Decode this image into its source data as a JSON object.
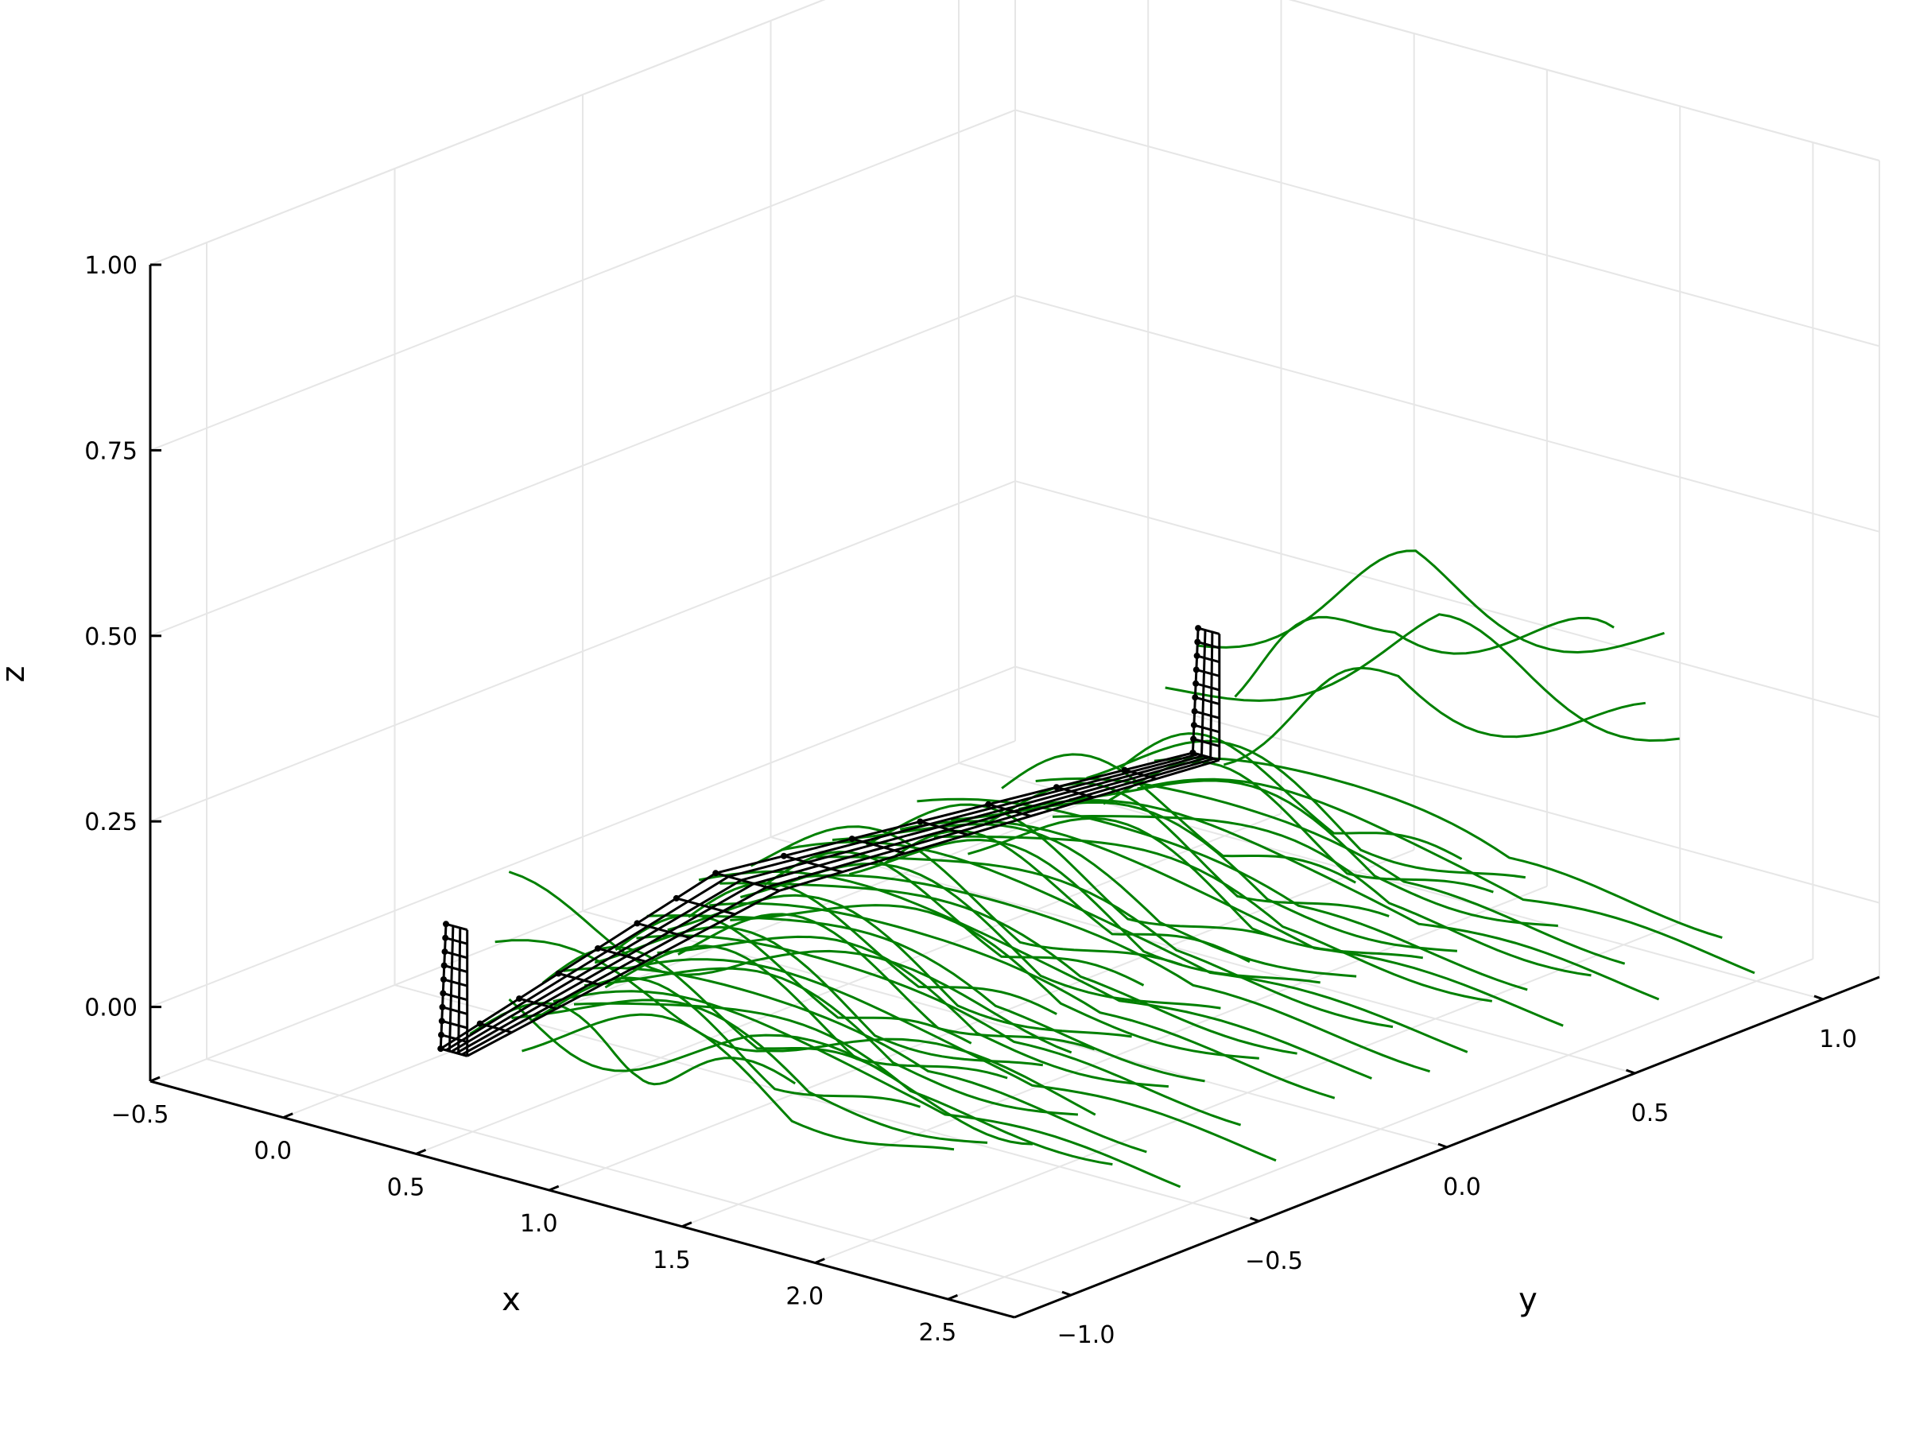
{
  "chart_data": {
    "type": "line",
    "projection": "3d-perspective",
    "title": "",
    "xlabel": "x",
    "ylabel": "y",
    "zlabel": "z",
    "xlim": [
      -0.5,
      2.75
    ],
    "ylim": [
      -1.15,
      1.15
    ],
    "zlim": [
      -0.1,
      1.0
    ],
    "xticks": [
      -0.5,
      0.0,
      0.5,
      1.0,
      1.5,
      2.0,
      2.5
    ],
    "xtick_labels": [
      "−0.5",
      "0.0",
      "0.5",
      "1.0",
      "1.5",
      "2.0",
      "2.5"
    ],
    "yticks": [
      -1.0,
      -0.5,
      0.0,
      0.5,
      1.0
    ],
    "ytick_labels": [
      "−1.0",
      "−0.5",
      "0.0",
      "0.5",
      "1.0"
    ],
    "zticks": [
      0.0,
      0.25,
      0.5,
      0.75,
      1.0
    ],
    "ztick_labels": [
      "0.00",
      "0.25",
      "0.50",
      "0.75",
      "1.00"
    ],
    "grid": true,
    "legend": "none",
    "series": [
      {
        "role": "wing-surface",
        "color": "#000000",
        "marker": "dot",
        "span_y": [
          -1.0,
          1.0
        ],
        "root_chord": 0.24,
        "tip_x": 0.38,
        "tip_z": 0.0,
        "winglet_height": 0.17,
        "winglet_chord": 0.1
      },
      {
        "role": "streamlines",
        "color": "#008000",
        "count": 56,
        "x_start": 0.08,
        "x_end": 2.75,
        "z_range": [
          -0.05,
          0.36
        ],
        "rollup_z": 0.3
      }
    ]
  }
}
